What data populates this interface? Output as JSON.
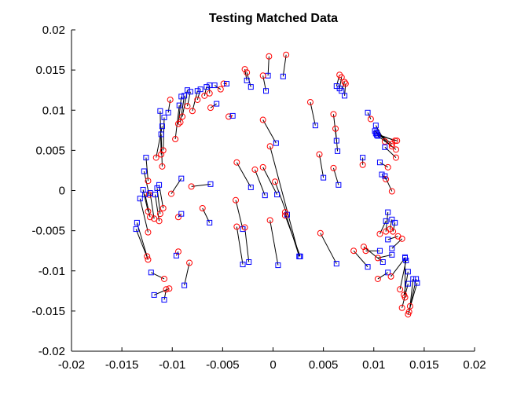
{
  "chart_data": {
    "type": "scatter",
    "title": "Testing Matched Data",
    "xlabel": "",
    "ylabel": "",
    "xlim": [
      -0.02,
      0.02
    ],
    "ylim": [
      -0.02,
      0.02
    ],
    "x_ticks": [
      -0.02,
      -0.015,
      -0.01,
      -0.005,
      0,
      0.005,
      0.01,
      0.015,
      0.02
    ],
    "x_tick_labels": [
      "-0.02",
      "-0.015",
      "-0.01",
      "-0.005",
      "0",
      "0.005",
      "0.01",
      "0.015",
      "0.02"
    ],
    "y_ticks": [
      -0.02,
      -0.015,
      -0.01,
      -0.005,
      0,
      0.005,
      0.01,
      0.015,
      0.02
    ],
    "y_tick_labels": [
      "-0.02",
      "-0.015",
      "-0.01",
      "-0.005",
      "0",
      "0.005",
      "0.01",
      "0.015",
      "0.02"
    ],
    "grid": false,
    "legend": "none",
    "colors": {
      "circle": "#ff0000",
      "square": "#0000ff",
      "line": "#000000"
    },
    "pairs": [
      {
        "circle": [
          0.0013,
          0.0169
        ],
        "square": [
          0.001,
          0.0142
        ]
      },
      {
        "circle": [
          -0.0004,
          0.0167
        ],
        "square": [
          -0.0005,
          0.0143
        ]
      },
      {
        "circle": [
          -0.0028,
          0.0151
        ],
        "square": [
          -0.0026,
          0.0137
        ]
      },
      {
        "circle": [
          -0.0026,
          0.0147
        ],
        "square": [
          -0.0022,
          0.0129
        ]
      },
      {
        "circle": [
          -0.001,
          0.0143
        ],
        "square": [
          -0.0007,
          0.0124
        ]
      },
      {
        "circle": [
          -0.0049,
          0.0133
        ],
        "square": [
          -0.0046,
          0.0133
        ]
      },
      {
        "circle": [
          -0.0052,
          0.0126
        ],
        "square": [
          -0.0058,
          0.0131
        ]
      },
      {
        "circle": [
          -0.0063,
          0.0121
        ],
        "square": [
          -0.0063,
          0.0131
        ]
      },
      {
        "circle": [
          -0.0068,
          0.0118
        ],
        "square": [
          -0.0066,
          0.0129
        ]
      },
      {
        "circle": [
          -0.0062,
          0.0103
        ],
        "square": [
          -0.0056,
          0.0108
        ]
      },
      {
        "circle": [
          -0.0075,
          0.0113
        ],
        "square": [
          -0.0072,
          0.0126
        ]
      },
      {
        "circle": [
          -0.008,
          0.0099
        ],
        "square": [
          -0.0075,
          0.0124
        ]
      },
      {
        "circle": [
          -0.0085,
          0.0105
        ],
        "square": [
          -0.0082,
          0.0123
        ]
      },
      {
        "circle": [
          -0.009,
          0.0092
        ],
        "square": [
          -0.0085,
          0.0125
        ]
      },
      {
        "circle": [
          -0.0092,
          0.0085
        ],
        "square": [
          -0.0088,
          0.0118
        ]
      },
      {
        "circle": [
          -0.0094,
          0.0083
        ],
        "square": [
          -0.0091,
          0.0117
        ]
      },
      {
        "circle": [
          -0.0097,
          0.0064
        ],
        "square": [
          -0.0093,
          0.0106
        ]
      },
      {
        "circle": [
          -0.0102,
          0.0113
        ],
        "square": [
          -0.0104,
          0.0097
        ]
      },
      {
        "circle": [
          -0.0109,
          0.005
        ],
        "square": [
          -0.0108,
          0.0091
        ]
      },
      {
        "circle": [
          -0.0111,
          0.0045
        ],
        "square": [
          -0.0112,
          0.0099
        ]
      },
      {
        "circle": [
          -0.0116,
          0.0041
        ],
        "square": [
          -0.011,
          0.008
        ]
      },
      {
        "circle": [
          -0.011,
          0.003
        ],
        "square": [
          -0.0111,
          0.007
        ]
      },
      {
        "circle": [
          -0.0044,
          0.0092
        ],
        "square": [
          -0.004,
          0.0093
        ]
      },
      {
        "circle": [
          -0.0124,
          0.0012
        ],
        "square": [
          -0.0126,
          0.0041
        ]
      },
      {
        "circle": [
          -0.0123,
          -0.0005
        ],
        "square": [
          -0.0128,
          0.0024
        ]
      },
      {
        "circle": [
          -0.0124,
          -0.0026
        ],
        "square": [
          -0.0129,
          0.0001
        ]
      },
      {
        "circle": [
          -0.0122,
          -0.0033
        ],
        "square": [
          -0.0127,
          -0.0005
        ]
      },
      {
        "circle": [
          -0.0118,
          -0.0035
        ],
        "square": [
          -0.0122,
          -0.0003
        ]
      },
      {
        "circle": [
          -0.0113,
          -0.0038
        ],
        "square": [
          -0.0117,
          -0.0005
        ]
      },
      {
        "circle": [
          -0.0112,
          -0.0029
        ],
        "square": [
          -0.0115,
          0.0003
        ]
      },
      {
        "circle": [
          -0.0109,
          -0.0022
        ],
        "square": [
          -0.0113,
          0.0007
        ]
      },
      {
        "circle": [
          -0.0124,
          -0.0052
        ],
        "square": [
          -0.0132,
          -0.001
        ]
      },
      {
        "circle": [
          -0.0125,
          -0.0082
        ],
        "square": [
          -0.0135,
          -0.004
        ]
      },
      {
        "circle": [
          -0.0124,
          -0.0086
        ],
        "square": [
          -0.0136,
          -0.0048
        ]
      },
      {
        "circle": [
          -0.0101,
          -0.0004
        ],
        "square": [
          -0.0091,
          0.0015
        ]
      },
      {
        "circle": [
          -0.0081,
          0.0005
        ],
        "square": [
          -0.0062,
          0.0008
        ]
      },
      {
        "circle": [
          -0.0094,
          -0.0033
        ],
        "square": [
          -0.0091,
          -0.0029
        ]
      },
      {
        "circle": [
          -0.007,
          -0.0022
        ],
        "square": [
          -0.0063,
          -0.004
        ]
      },
      {
        "circle": [
          -0.0094,
          -0.0076
        ],
        "square": [
          -0.0096,
          -0.0081
        ]
      },
      {
        "circle": [
          -0.0083,
          -0.009
        ],
        "square": [
          -0.0088,
          -0.0118
        ]
      },
      {
        "circle": [
          -0.0108,
          -0.011
        ],
        "square": [
          -0.0121,
          -0.0102
        ]
      },
      {
        "circle": [
          -0.0103,
          -0.0122
        ],
        "square": [
          -0.0118,
          -0.013
        ]
      },
      {
        "circle": [
          -0.0106,
          -0.0123
        ],
        "square": [
          -0.0108,
          -0.0136
        ]
      },
      {
        "circle": [
          -0.0036,
          0.0035
        ],
        "square": [
          -0.0022,
          0.0004
        ]
      },
      {
        "circle": [
          -0.0018,
          0.0026
        ],
        "square": [
          -0.0008,
          -0.0006
        ]
      },
      {
        "circle": [
          -0.001,
          0.0029
        ],
        "square": [
          0.0004,
          -0.0005
        ]
      },
      {
        "circle": [
          -0.0037,
          -0.0012
        ],
        "square": [
          -0.003,
          -0.0048
        ]
      },
      {
        "circle": [
          -0.0036,
          -0.0045
        ],
        "square": [
          -0.003,
          -0.0092
        ]
      },
      {
        "circle": [
          -0.0028,
          -0.0046
        ],
        "square": [
          -0.0024,
          -0.0089
        ]
      },
      {
        "circle": [
          -0.001,
          0.0088
        ],
        "square": [
          0.0003,
          0.0059
        ]
      },
      {
        "circle": [
          -0.0003,
          0.0055
        ],
        "square": [
          0.0026,
          -0.0082
        ]
      },
      {
        "circle": [
          0.0002,
          0.0011
        ],
        "square": [
          0.0014,
          -0.003
        ]
      },
      {
        "circle": [
          0.0012,
          -0.0027
        ],
        "square": [
          0.0026,
          -0.0082
        ]
      },
      {
        "circle": [
          0.0012,
          -0.0031
        ],
        "square": [
          0.0027,
          -0.0082
        ]
      },
      {
        "circle": [
          -0.0003,
          -0.0037
        ],
        "square": [
          0.0005,
          -0.0093
        ]
      },
      {
        "circle": [
          0.0037,
          0.011
        ],
        "square": [
          0.0042,
          0.0081
        ]
      },
      {
        "circle": [
          0.0046,
          0.0045
        ],
        "square": [
          0.005,
          0.0016
        ]
      },
      {
        "circle": [
          0.0047,
          -0.0053
        ],
        "square": [
          0.0063,
          -0.0091
        ]
      },
      {
        "circle": [
          0.006,
          0.0095
        ],
        "square": [
          0.0063,
          0.0062
        ]
      },
      {
        "circle": [
          0.0062,
          0.0077
        ],
        "square": [
          0.0064,
          0.0049
        ]
      },
      {
        "circle": [
          0.006,
          0.0028
        ],
        "square": [
          0.0065,
          0.0007
        ]
      },
      {
        "circle": [
          0.0066,
          0.0144
        ],
        "square": [
          0.0063,
          0.013
        ]
      },
      {
        "circle": [
          0.0068,
          0.0141
        ],
        "square": [
          0.0066,
          0.0127
        ]
      },
      {
        "circle": [
          0.0071,
          0.0135
        ],
        "square": [
          0.0068,
          0.0124
        ]
      },
      {
        "circle": [
          0.0072,
          0.0133
        ],
        "square": [
          0.0071,
          0.0118
        ]
      },
      {
        "circle": [
          0.0089,
          0.0032
        ],
        "square": [
          0.0089,
          0.0041
        ]
      },
      {
        "circle": [
          0.0097,
          0.0089
        ],
        "square": [
          0.0094,
          0.0097
        ]
      },
      {
        "circle": [
          0.0111,
          0.0061
        ],
        "square": [
          0.0102,
          0.0081
        ]
      },
      {
        "circle": [
          0.0118,
          0.0058
        ],
        "square": [
          0.0101,
          0.0074
        ]
      },
      {
        "circle": [
          0.0121,
          0.0062
        ],
        "square": [
          0.0102,
          0.0071
        ]
      },
      {
        "circle": [
          0.0123,
          0.0062
        ],
        "square": [
          0.0103,
          0.0069
        ]
      },
      {
        "circle": [
          0.0122,
          0.0051
        ],
        "square": [
          0.0104,
          0.0068
        ]
      },
      {
        "circle": [
          0.0118,
          0.0055
        ],
        "square": [
          0.0103,
          0.0072
        ]
      },
      {
        "circle": [
          0.0122,
          0.0041
        ],
        "square": [
          0.0111,
          0.0054
        ]
      },
      {
        "circle": [
          0.0114,
          0.0029
        ],
        "square": [
          0.0106,
          0.0035
        ]
      },
      {
        "circle": [
          0.0112,
          0.0014
        ],
        "square": [
          0.0108,
          0.002
        ]
      },
      {
        "circle": [
          0.0118,
          -0.0001
        ],
        "square": [
          0.0111,
          0.0018
        ]
      },
      {
        "circle": [
          0.008,
          -0.0075
        ],
        "square": [
          0.0094,
          -0.0095
        ]
      },
      {
        "circle": [
          0.009,
          -0.007
        ],
        "square": [
          0.0109,
          -0.0089
        ]
      },
      {
        "circle": [
          0.0092,
          -0.0075
        ],
        "square": [
          0.0106,
          -0.0075
        ]
      },
      {
        "circle": [
          0.0104,
          -0.0084
        ],
        "square": [
          0.0118,
          -0.008
        ]
      },
      {
        "circle": [
          0.0104,
          -0.011
        ],
        "square": [
          0.0114,
          -0.0102
        ]
      },
      {
        "circle": [
          0.0106,
          -0.0054
        ],
        "square": [
          0.0112,
          -0.0038
        ]
      },
      {
        "circle": [
          0.0112,
          -0.0051
        ],
        "square": [
          0.0114,
          -0.0027
        ]
      },
      {
        "circle": [
          0.0116,
          -0.0048
        ],
        "square": [
          0.0118,
          -0.0036
        ]
      },
      {
        "circle": [
          0.0119,
          -0.0051
        ],
        "square": [
          0.0121,
          -0.004
        ]
      },
      {
        "circle": [
          0.0124,
          -0.0057
        ],
        "square": [
          0.0114,
          -0.0061
        ]
      },
      {
        "circle": [
          0.0128,
          -0.006
        ],
        "square": [
          0.0118,
          -0.0072
        ]
      },
      {
        "circle": [
          0.0117,
          -0.0107
        ],
        "square": [
          0.0131,
          -0.0084
        ]
      },
      {
        "circle": [
          0.0126,
          -0.0123
        ],
        "square": [
          0.0132,
          -0.0087
        ]
      },
      {
        "circle": [
          0.013,
          -0.013
        ],
        "square": [
          0.0134,
          -0.0101
        ]
      },
      {
        "circle": [
          0.0131,
          -0.0133
        ],
        "square": [
          0.0131,
          -0.0083
        ]
      },
      {
        "circle": [
          0.0136,
          -0.0144
        ],
        "square": [
          0.0139,
          -0.011
        ]
      },
      {
        "circle": [
          0.0128,
          -0.0146
        ],
        "square": [
          0.0134,
          -0.0116
        ]
      },
      {
        "circle": [
          0.0135,
          -0.0151
        ],
        "square": [
          0.0142,
          -0.011
        ]
      },
      {
        "circle": [
          0.0134,
          -0.0154
        ],
        "square": [
          0.0143,
          -0.0115
        ]
      }
    ]
  }
}
